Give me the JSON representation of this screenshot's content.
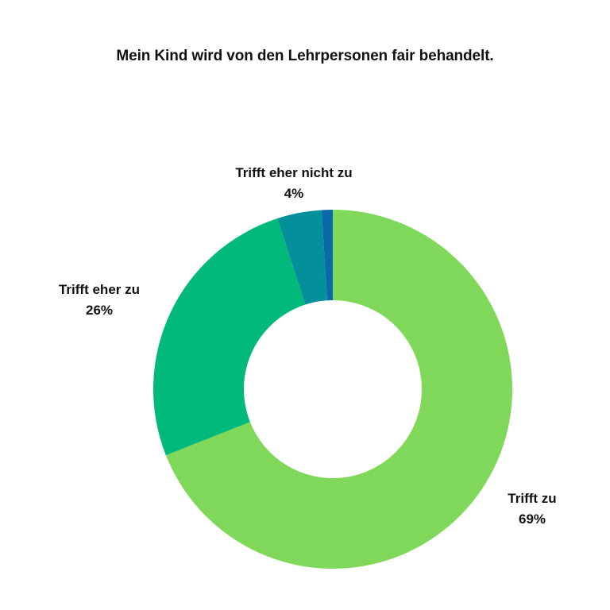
{
  "chart_data": {
    "type": "pie",
    "title": "Mein Kind wird von den Lehrpersonen fair behandelt.",
    "slices": [
      {
        "name": "Trifft zu",
        "value": 69,
        "label": "69%",
        "color": "#80D85A"
      },
      {
        "name": "Trifft eher zu",
        "value": 26,
        "label": "26%",
        "color": "#02B97C"
      },
      {
        "name": "Trifft eher nicht zu",
        "value": 4,
        "label": "4%",
        "color": "#03909A"
      },
      {
        "name": "",
        "value": 1,
        "label": "",
        "color": "#0A69A8"
      }
    ],
    "donut": true,
    "legend": "none"
  }
}
